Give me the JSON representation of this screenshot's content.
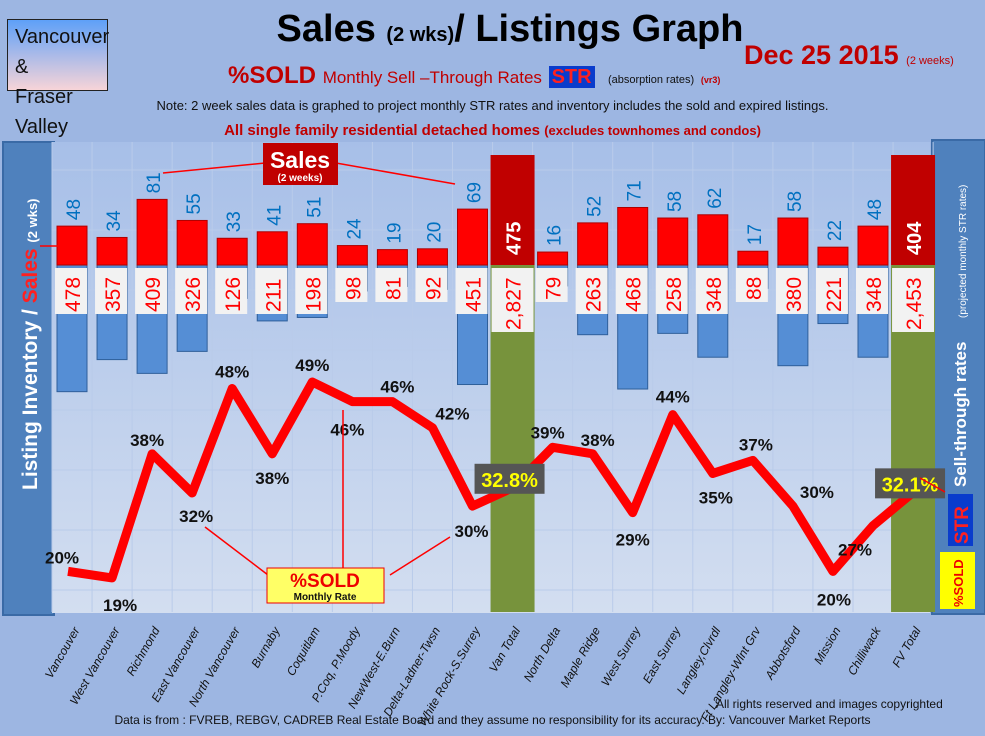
{
  "header": {
    "region_line1": "Vancouver &",
    "region_line2": "Fraser Valley",
    "title_main": "Sales ",
    "title_small": "(2 wks)",
    "title_rest": "/ Listings Graph",
    "date": "Dec 25 2015",
    "date_note": "(2 weeks)",
    "sold_label": "%SOLD",
    "str_title": "Monthly Sell –Through Rates",
    "str_badge": "STR",
    "absorption": "(absorption rates)",
    "version": "(vr3)",
    "note": "Note: 2 week sales data is graphed to project monthly STR rates and inventory includes the sold and expired listings.",
    "homes": "All single family residential detached homes",
    "homes_note": "(excludes townhomes and condos)"
  },
  "left_axis": {
    "inventory": "Listing Inventory /",
    "sales": "Sales",
    "wks": "(2 wks)"
  },
  "right_axis": {
    "title": "Sell-through rates",
    "sub": "(projected monthly STR rates)",
    "str": "STR",
    "sold": "%SOLD"
  },
  "callouts": {
    "sales": "Sales",
    "sales_sub": "(2 weeks)",
    "sold": "%SOLD",
    "sold_sub": "Monthly Rate"
  },
  "colors": {
    "sales": "#ff0000",
    "inventory": "#558ed5",
    "total_sales": "#c00000",
    "total_inventory": "#77933c",
    "line": "#ff0000"
  },
  "chart_data": {
    "type": "bar+line",
    "categories": [
      "Vancouver",
      "West Vancouver",
      "Richmond",
      "East Vancouver",
      "North Vancouver",
      "Burnaby",
      "Coquitlam",
      "P.Coq, P.Moody",
      "NewWest-E.Burn",
      "Delta-Ladner-Twsn",
      "White Rock-S.Surrey",
      "Van Total",
      "North Delta",
      "Maple Ridge",
      "West Surrey",
      "East Surrey",
      "Langley,Clvrdl",
      "Ft Langley-Wlnt Grv",
      "Abbotsford",
      "Mission",
      "Chilliwack",
      "FV Total"
    ],
    "series": [
      {
        "name": "Sales (2 weeks)",
        "values": [
          48,
          34,
          81,
          55,
          33,
          41,
          51,
          24,
          19,
          20,
          69,
          475,
          16,
          52,
          71,
          58,
          62,
          17,
          58,
          22,
          48,
          404
        ]
      },
      {
        "name": "Listing Inventory",
        "values": [
          478,
          357,
          409,
          326,
          126,
          211,
          198,
          98,
          81,
          92,
          451,
          2827,
          79,
          263,
          468,
          258,
          348,
          88,
          380,
          221,
          348,
          2453
        ],
        "labels": [
          "478",
          "357",
          "409",
          "326",
          "126",
          "211",
          "198",
          "98",
          "81",
          "92",
          "451",
          "2,827",
          "79",
          "263",
          "468",
          "258",
          "348",
          "88",
          "380",
          "221",
          "348",
          "2,453"
        ]
      },
      {
        "name": "%SOLD Monthly Rate",
        "values": [
          20,
          19,
          38,
          32,
          48,
          38,
          49,
          46,
          46,
          42,
          30,
          32.8,
          39,
          38,
          29,
          44,
          35,
          37,
          30,
          20,
          27,
          32.1
        ],
        "labels": [
          "20%",
          "19%",
          "38%",
          "32%",
          "48%",
          "38%",
          "49%",
          "46%",
          "46%",
          "42%",
          "30%",
          "32.8%",
          "39%",
          "38%",
          "29%",
          "44%",
          "35%",
          "37%",
          "30%",
          "20%",
          "27%",
          "32.1%"
        ]
      }
    ],
    "totals_index": [
      11,
      21
    ]
  },
  "footer": {
    "rights": "All rights reserved and  images copyrighted",
    "source": "Data is from : FVREB, REBGV, CADREB Real Estate Board and they assume no responsibility for its accuracy. By: Vancouver Market Reports"
  }
}
